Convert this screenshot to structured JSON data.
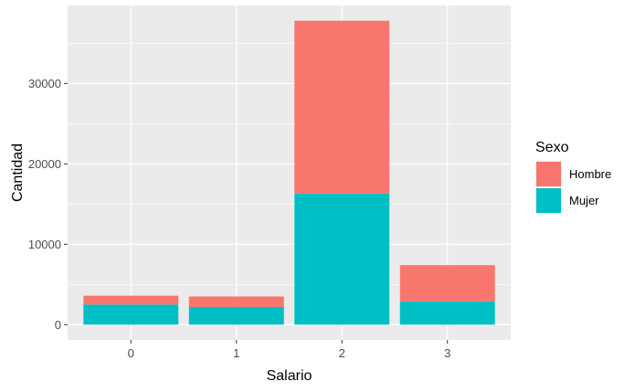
{
  "chart_data": {
    "type": "bar",
    "stacked": true,
    "categories": [
      "0",
      "1",
      "2",
      "3"
    ],
    "series": [
      {
        "name": "Hombre",
        "color": "#F8766D",
        "values": [
          1100,
          1300,
          21500,
          4500
        ]
      },
      {
        "name": "Mujer",
        "color": "#00BFC4",
        "values": [
          2500,
          2200,
          16300,
          2900
        ]
      }
    ],
    "xlabel": "Salario",
    "ylabel": "Cantidad",
    "yticks": [
      0,
      10000,
      20000,
      30000
    ],
    "ylim": [
      -1900,
      39700
    ],
    "grid": true,
    "panel_background": "#EBEBEB",
    "legend": {
      "title": "Sexo",
      "position": "right"
    }
  }
}
